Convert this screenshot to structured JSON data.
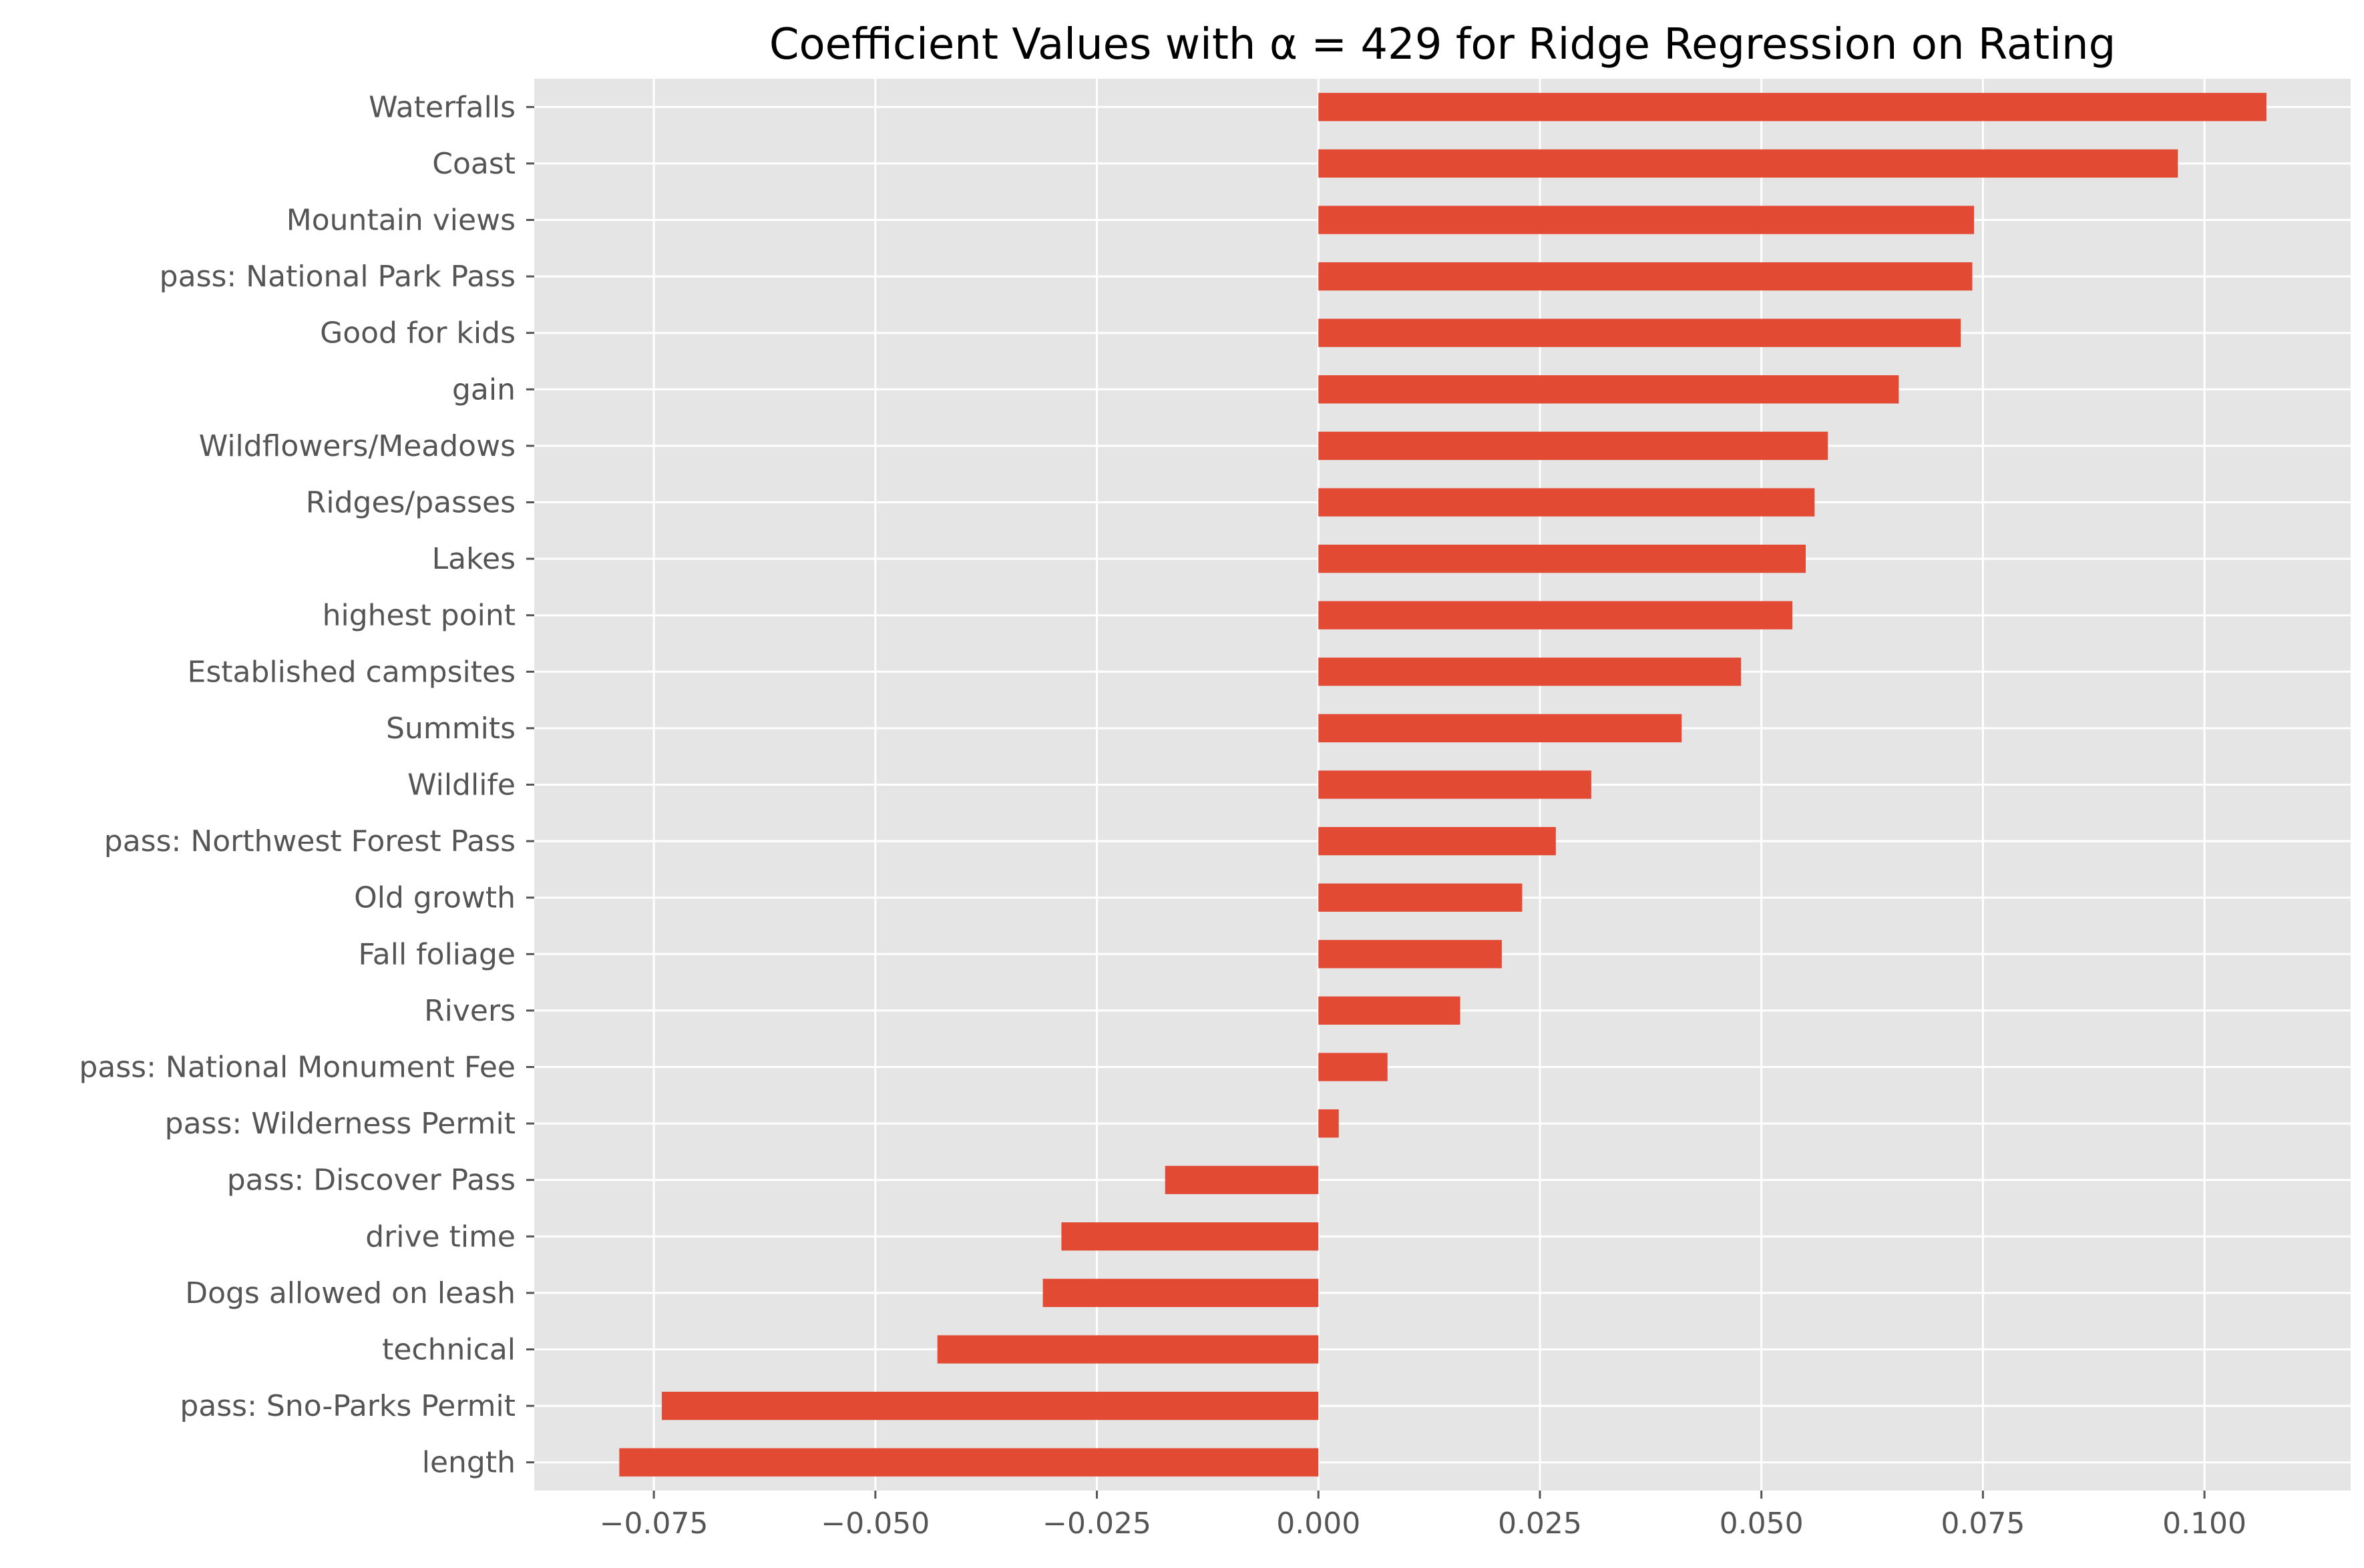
{
  "chart_data": {
    "type": "bar",
    "orientation": "horizontal",
    "title": "Coefficient Values with α = 429 for Ridge Regression on Rating",
    "xlabel": "",
    "ylabel": "",
    "categories": [
      "Waterfalls",
      "Coast",
      "Mountain views",
      "pass: National Park Pass",
      "Good for kids",
      "gain",
      "Wildflowers/Meadows",
      "Ridges/passes",
      "Lakes",
      "highest point",
      "Established campsites",
      "Summits",
      "Wildlife",
      "pass: Northwest Forest Pass",
      "Old growth",
      "Fall foliage",
      "Rivers",
      "pass: National Monument Fee",
      "pass: Wilderness Permit",
      "pass: Discover Pass",
      "drive time",
      "Dogs allowed on leash",
      "technical",
      "pass: Sno-Parks Permit",
      "length"
    ],
    "values": [
      0.107,
      0.097,
      0.074,
      0.0738,
      0.0725,
      0.0655,
      0.0575,
      0.056,
      0.055,
      0.0535,
      0.0477,
      0.041,
      0.0308,
      0.0268,
      0.023,
      0.0207,
      0.016,
      0.0078,
      0.0023,
      -0.0173,
      -0.029,
      -0.0311,
      -0.043,
      -0.0741,
      -0.0789
    ],
    "xlim": [
      -0.0885,
      0.1165
    ],
    "xticks": [
      -0.075,
      -0.05,
      -0.025,
      0.0,
      0.025,
      0.05,
      0.075,
      0.1
    ],
    "xtick_labels": [
      "−0.075",
      "−0.050",
      "−0.025",
      "0.000",
      "0.025",
      "0.050",
      "0.075",
      "0.100"
    ],
    "grid": true,
    "legend": "none",
    "colors": {
      "bar": "#E24A33",
      "plot_background": "#E5E5E5",
      "grid": "#FFFFFF",
      "tick_label": "#555555",
      "title": "#000000"
    }
  }
}
